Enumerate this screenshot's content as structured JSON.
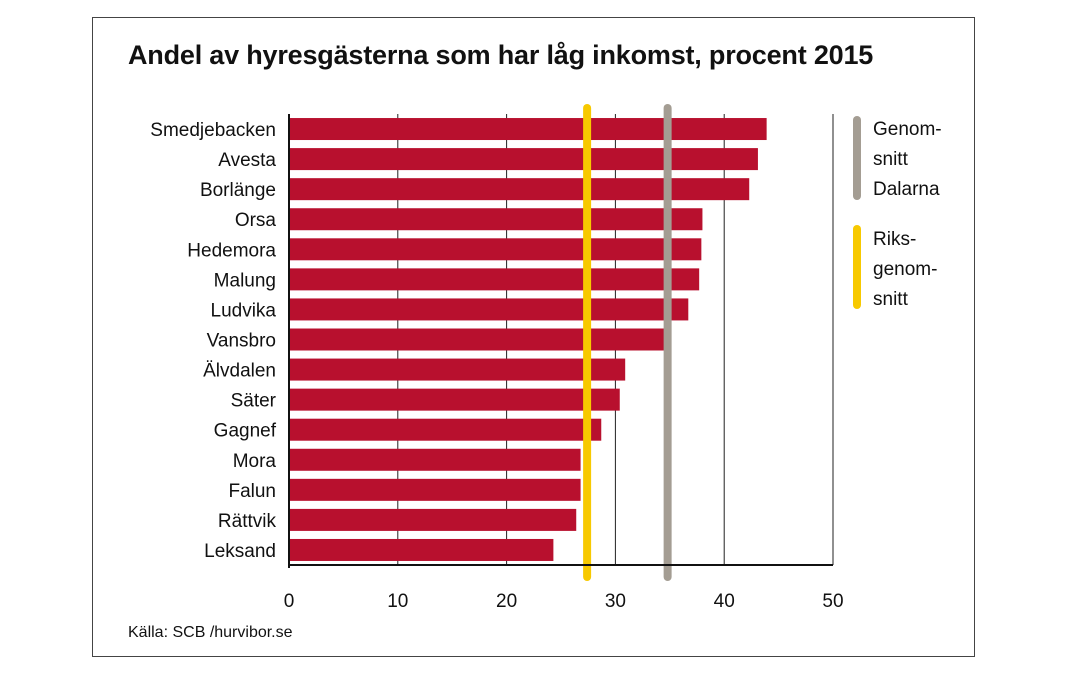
{
  "title": "Andel av hyresgästerna som har låg inkomst, procent 2015",
  "source": "Källa: SCB /hurvibor.se",
  "colors": {
    "bar": "#b8102e",
    "avg_dalarna": "#a49d93",
    "riks_avg": "#f7c900",
    "grid": "#222222"
  },
  "legend": {
    "dalarna_lines": [
      "Genom-",
      "snitt",
      "Dalarna"
    ],
    "riks_lines": [
      "Riks-",
      "genom-",
      "snitt"
    ]
  },
  "chart_data": {
    "type": "bar",
    "orientation": "horizontal",
    "title": "Andel av hyresgästerna som har låg inkomst, procent 2015",
    "categories": [
      "Smedjebacken",
      "Avesta",
      "Borlänge",
      "Orsa",
      "Hedemora",
      "Malung",
      "Ludvika",
      "Vansbro",
      "Älvdalen",
      "Säter",
      "Gagnef",
      "Mora",
      "Falun",
      "Rättvik",
      "Leksand"
    ],
    "values": [
      43.9,
      43.1,
      42.3,
      38.0,
      37.9,
      37.7,
      36.7,
      34.6,
      30.9,
      30.4,
      28.7,
      26.8,
      26.8,
      26.4,
      24.3
    ],
    "xlim": [
      0,
      50
    ],
    "xticks": [
      0,
      10,
      20,
      30,
      40,
      50
    ],
    "reference_lines": [
      {
        "name": "Genomsnitt Dalarna",
        "value": 34.8,
        "color": "#a49d93"
      },
      {
        "name": "Riksgenomsnitt",
        "value": 27.4,
        "color": "#f7c900"
      }
    ],
    "grid": true,
    "legend_position": "right"
  }
}
